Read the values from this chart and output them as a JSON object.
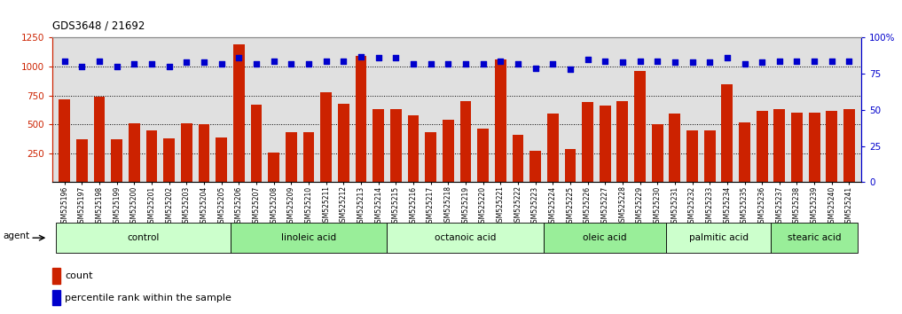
{
  "title": "GDS3648 / 21692",
  "categories": [
    "GSM525196",
    "GSM525197",
    "GSM525198",
    "GSM525199",
    "GSM525200",
    "GSM525201",
    "GSM525202",
    "GSM525203",
    "GSM525204",
    "GSM525205",
    "GSM525206",
    "GSM525207",
    "GSM525208",
    "GSM525209",
    "GSM525210",
    "GSM525211",
    "GSM525212",
    "GSM525213",
    "GSM525214",
    "GSM525215",
    "GSM525216",
    "GSM525217",
    "GSM525218",
    "GSM525219",
    "GSM525220",
    "GSM525221",
    "GSM525222",
    "GSM525223",
    "GSM525224",
    "GSM525225",
    "GSM525226",
    "GSM525227",
    "GSM525228",
    "GSM525229",
    "GSM525230",
    "GSM525231",
    "GSM525232",
    "GSM525233",
    "GSM525234",
    "GSM525235",
    "GSM525236",
    "GSM525237",
    "GSM525238",
    "GSM525239",
    "GSM525240",
    "GSM525241"
  ],
  "bar_values": [
    720,
    370,
    740,
    370,
    510,
    450,
    375,
    510,
    505,
    385,
    1190,
    670,
    255,
    430,
    430,
    775,
    680,
    1090,
    635,
    630,
    580,
    430,
    540,
    700,
    460,
    1060,
    410,
    270,
    590,
    285,
    690,
    660,
    700,
    960,
    505,
    590,
    445,
    450,
    850,
    520,
    615,
    635,
    600,
    600,
    615,
    635
  ],
  "dot_values_pct": [
    84,
    80,
    84,
    80,
    82,
    82,
    80,
    83,
    83,
    82,
    86,
    82,
    84,
    82,
    82,
    84,
    84,
    87,
    86,
    86,
    82,
    82,
    82,
    82,
    82,
    84,
    82,
    79,
    82,
    78,
    85,
    84,
    83,
    84,
    84,
    83,
    83,
    83,
    86,
    82,
    83,
    84,
    84,
    84,
    84,
    84
  ],
  "bar_color": "#cc2200",
  "dot_color": "#0000cc",
  "bg_color": "#e0e0e0",
  "ylim_left": [
    0,
    1250
  ],
  "ylim_right": [
    0,
    100
  ],
  "yticks_left": [
    250,
    500,
    750,
    1000,
    1250
  ],
  "yticks_right": [
    0,
    25,
    50,
    75,
    100
  ],
  "groups": [
    {
      "label": "control",
      "start": 0,
      "end": 9,
      "color": "#ccffcc"
    },
    {
      "label": "linoleic acid",
      "start": 10,
      "end": 18,
      "color": "#99ee99"
    },
    {
      "label": "octanoic acid",
      "start": 19,
      "end": 27,
      "color": "#ccffcc"
    },
    {
      "label": "oleic acid",
      "start": 28,
      "end": 34,
      "color": "#99ee99"
    },
    {
      "label": "palmitic acid",
      "start": 35,
      "end": 40,
      "color": "#ccffcc"
    },
    {
      "label": "stearic acid",
      "start": 41,
      "end": 45,
      "color": "#99ee99"
    }
  ],
  "agent_label": "agent",
  "legend_count_label": "count",
  "legend_pct_label": "percentile rank within the sample",
  "fig_width": 10.17,
  "fig_height": 3.54
}
